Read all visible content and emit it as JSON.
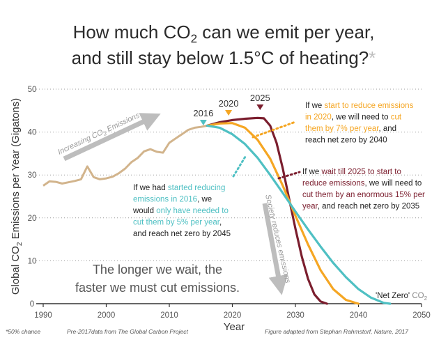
{
  "chart_data": {
    "type": "line",
    "title_line1_a": "How much CO",
    "title_line1_sub": "2",
    "title_line1_b": " can we emit per year,",
    "title_line2": "and still stay below 1.5°C of heating?",
    "title_mark": "*",
    "ylabel_a": "Global CO",
    "ylabel_sub": "2",
    "ylabel_b": " Emissions per Year (Gigatons)",
    "xlabel": "Year",
    "xlim": [
      1990,
      2050
    ],
    "ylim": [
      0,
      50
    ],
    "x_ticks": [
      "1990",
      "2000",
      "2010",
      "2020",
      "2030",
      "2040",
      "2050"
    ],
    "y_ticks": [
      "0",
      "10",
      "20",
      "30",
      "40",
      "50"
    ],
    "grid": true,
    "historical": {
      "color": "#d2b48c",
      "x": [
        1990,
        1991,
        1992,
        1993,
        1994,
        1995,
        1996,
        1997,
        1998,
        1999,
        2000,
        2001,
        2002,
        2003,
        2004,
        2005,
        2006,
        2007,
        2008,
        2009,
        2010,
        2011,
        2012,
        2013,
        2014,
        2015,
        2016
      ],
      "y": [
        27.5,
        28.5,
        28.4,
        28,
        28.3,
        28.6,
        29,
        32,
        29.5,
        29,
        29.2,
        29.6,
        30.4,
        31.5,
        33,
        34,
        35.5,
        36,
        35.4,
        35.2,
        37.5,
        38.5,
        39.5,
        40.5,
        41,
        41.2,
        41.5
      ]
    },
    "series": [
      {
        "color": "#4fc0c3",
        "start_label": "2016",
        "x": [
          2016,
          2018,
          2020,
          2022,
          2024,
          2026,
          2028,
          2030,
          2032,
          2034,
          2036,
          2038,
          2040,
          2042,
          2044,
          2045
        ],
        "y": [
          41.5,
          41.0,
          39.5,
          37.2,
          34.0,
          30.0,
          25.8,
          21.5,
          17.3,
          13.3,
          9.5,
          6.2,
          3.4,
          1.4,
          0.2,
          0
        ]
      },
      {
        "color": "#f5a623",
        "start_label": "2020",
        "x": [
          2016,
          2018,
          2020,
          2022,
          2024,
          2026,
          2028,
          2030,
          2032,
          2034,
          2036,
          2038,
          2039.5,
          2040
        ],
        "y": [
          41.5,
          42.0,
          42.1,
          41.0,
          38.2,
          33.8,
          27.5,
          20.5,
          13.8,
          7.8,
          3.4,
          0.9,
          0.2,
          0
        ]
      },
      {
        "color": "#7b1e2e",
        "start_label": "2025",
        "x": [
          2016,
          2018,
          2020,
          2022,
          2024,
          2025,
          2026,
          2027,
          2028,
          2029,
          2030,
          2031,
          2032,
          2033,
          2034,
          2035
        ],
        "y": [
          41.5,
          42.3,
          42.8,
          43.1,
          43.3,
          43.2,
          41.5,
          37.5,
          31.5,
          24.5,
          17.5,
          11.0,
          5.8,
          2.2,
          0.5,
          0
        ]
      }
    ],
    "annotations": {
      "increasing_a": "Increasing CO",
      "increasing_sub": "2",
      "increasing_b": " Emissions",
      "society": "Society reduces emissions",
      "net_zero_a": "'Net Zero'",
      "net_zero_b": " CO",
      "net_zero_sub": "2",
      "bottom_line1": "The longer we wait, the",
      "bottom_line2": "faster we must cut emissions.",
      "note_2020": [
        [
          [
            "If we ",
            "#222"
          ],
          [
            "start to reduce emissions",
            "#f5a623"
          ]
        ],
        [
          [
            "in 2020",
            "#f5a623"
          ],
          [
            ", we will need to ",
            "#222"
          ],
          [
            "cut",
            "#f5a623"
          ]
        ],
        [
          [
            "them by 7% per year",
            "#f5a623"
          ],
          [
            ", and",
            "#222"
          ]
        ],
        [
          [
            "reach net zero by 2040",
            "#222"
          ]
        ]
      ],
      "note_2025": [
        [
          [
            "If we ",
            "#222"
          ],
          [
            "wait till 2025 to start to",
            "#7b1e2e"
          ]
        ],
        [
          [
            "reduce emissions",
            "#7b1e2e"
          ],
          [
            ", we will need to",
            "#222"
          ]
        ],
        [
          [
            "cut them by an enormous 15% per",
            "#7b1e2e"
          ]
        ],
        [
          [
            "year",
            "#7b1e2e"
          ],
          [
            ", and reach net zero by 2035",
            "#222"
          ]
        ]
      ],
      "note_2016": [
        [
          [
            "If we had ",
            "#222"
          ],
          [
            "started reducing",
            "#4fc0c3"
          ]
        ],
        [
          [
            "emissions in 2016",
            "#4fc0c3"
          ],
          [
            ", we",
            "#222"
          ]
        ],
        [
          [
            "would ",
            "#222"
          ],
          [
            "only have needed to",
            "#4fc0c3"
          ]
        ],
        [
          [
            "cut them by 5% per year",
            "#4fc0c3"
          ],
          [
            ",",
            "#222"
          ]
        ],
        [
          [
            "and reach net zero by 2045",
            "#222"
          ]
        ]
      ]
    },
    "footer": {
      "chance": "*50% chance",
      "source": "Pre-2017data from The Global Carbon Project",
      "credit": "Figure adapted from Stephan Rahmstorf, Nature, 2017"
    }
  }
}
